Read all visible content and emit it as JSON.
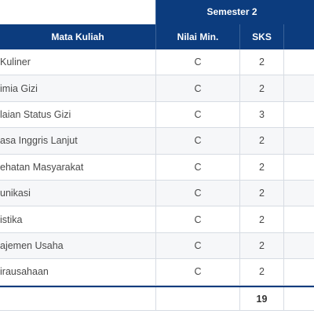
{
  "table": {
    "semester_label": "Semester 2",
    "headers": {
      "course": "Mata Kuliah",
      "min_grade": "Nilai Min.",
      "credits": "SKS"
    },
    "rows": [
      {
        "course": "Kuliner",
        "min_grade": "C",
        "credits": "2"
      },
      {
        "course": "imia Gizi",
        "min_grade": "C",
        "credits": "2"
      },
      {
        "course": "laian Status Gizi",
        "min_grade": "C",
        "credits": "3"
      },
      {
        "course": "asa Inggris Lanjut",
        "min_grade": "C",
        "credits": "2"
      },
      {
        "course": "ehatan Masyarakat",
        "min_grade": "C",
        "credits": "2"
      },
      {
        "course": "unikasi",
        "min_grade": "C",
        "credits": "2"
      },
      {
        "course": "istika",
        "min_grade": "C",
        "credits": "2"
      },
      {
        "course": "ajemen Usaha",
        "min_grade": "C",
        "credits": "2"
      },
      {
        "course": "irausahaan",
        "min_grade": "C",
        "credits": "2"
      }
    ],
    "total_credits": "19"
  },
  "colors": {
    "header_bg": "#0c3c7e",
    "header_text": "#ffffff",
    "row_alt_bg": "#f6f7f9",
    "border": "#d7dce3"
  }
}
